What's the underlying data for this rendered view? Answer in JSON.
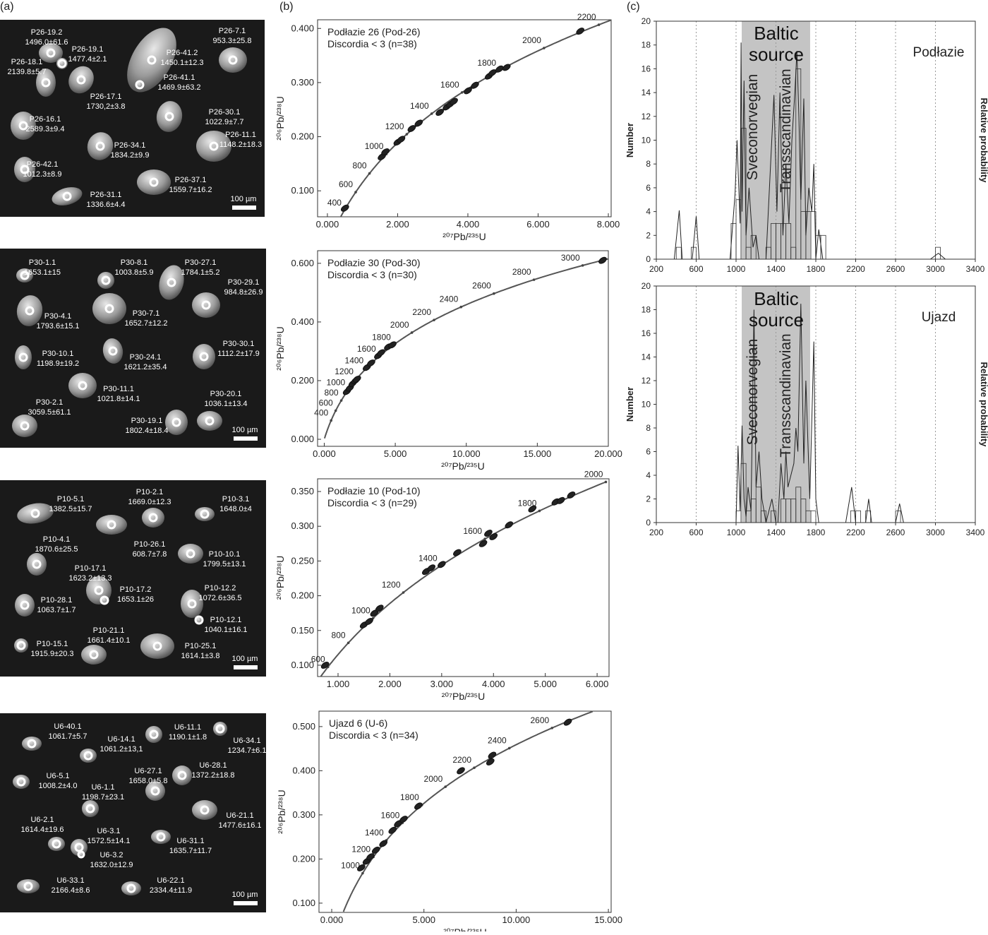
{
  "panel_labels": [
    "(a)",
    "(b)",
    "(c)"
  ],
  "grain_panels": [
    {
      "scale_bar": "100 µm",
      "grains": [
        {
          "id": "P26-19.2",
          "age": "1496.0±61.6"
        },
        {
          "id": "P26-19.1",
          "age": "1477.4±2.1"
        },
        {
          "id": "P26-18.1",
          "age": "2139.8±5.7"
        },
        {
          "id": "P26-17.1",
          "age": "1730,2±3.8"
        },
        {
          "id": "P26-41.2",
          "age": "1450.1±12.3"
        },
        {
          "id": "P26-41.1",
          "age": "1469.9±63.2"
        },
        {
          "id": "P26-7.1",
          "age": "953.3±25.8"
        },
        {
          "id": "P26-16.1",
          "age": "2589.3±9.4"
        },
        {
          "id": "P26-30.1",
          "age": "1022.9±7.7"
        },
        {
          "id": "P26-11.1",
          "age": "1148.2±18.3"
        },
        {
          "id": "P26-34.1",
          "age": "1834.2±9.9"
        },
        {
          "id": "P26-42.1",
          "age": "1012.3±8.9"
        },
        {
          "id": "P26-37.1",
          "age": "1559.7±16.2"
        },
        {
          "id": "P26-31.1",
          "age": "1336.6±4.4"
        }
      ]
    },
    {
      "scale_bar": "100 µm",
      "grains": [
        {
          "id": "P30-1.1",
          "age": "1653.1±15"
        },
        {
          "id": "P30-8.1",
          "age": "1003.8±5.9"
        },
        {
          "id": "P30-27.1",
          "age": "1784.1±5.2"
        },
        {
          "id": "P30-29.1",
          "age": "984.8±26.9"
        },
        {
          "id": "P30-4.1",
          "age": "1793.6±15.1"
        },
        {
          "id": "P30-7.1",
          "age": "1652.7±12.2"
        },
        {
          "id": "P30-10.1",
          "age": "1198.9±19.2"
        },
        {
          "id": "P30-24.1",
          "age": "1621.2±35.4"
        },
        {
          "id": "P30-30.1",
          "age": "1112.2±17.9"
        },
        {
          "id": "P30-11.1",
          "age": "1021.8±14.1"
        },
        {
          "id": "P30-2.1",
          "age": "3059.5±61.1"
        },
        {
          "id": "P30-20.1",
          "age": "1036.1±13.4"
        },
        {
          "id": "P30-19.1",
          "age": "1802.4±18.4"
        }
      ]
    },
    {
      "scale_bar": "100 µm",
      "grains": [
        {
          "id": "P10-5.1",
          "age": "1382.5±15.7"
        },
        {
          "id": "P10-2.1",
          "age": "1669.0±12.3"
        },
        {
          "id": "P10-3.1",
          "age": "1648.0±4"
        },
        {
          "id": "P10-4.1",
          "age": "1870.6±25.5"
        },
        {
          "id": "P10-26.1",
          "age": "608.7±7.8"
        },
        {
          "id": "P10-10.1",
          "age": "1799.5±13.1"
        },
        {
          "id": "P10-17.1",
          "age": "1623.2±13.3"
        },
        {
          "id": "P10-17.2",
          "age": "1653.1±26"
        },
        {
          "id": "P10-12.2",
          "age": "1072.6±36.5"
        },
        {
          "id": "P10-28.1",
          "age": "1063.7±1.7"
        },
        {
          "id": "P10-12.1",
          "age": "1040.1±16.1"
        },
        {
          "id": "P10-15.1",
          "age": "1915.9±20.3"
        },
        {
          "id": "P10-21.1",
          "age": "1661.4±10.1"
        },
        {
          "id": "P10-25.1",
          "age": "1614.1±3.8"
        }
      ]
    },
    {
      "scale_bar": "100 µm",
      "grains": [
        {
          "id": "U6-40.1",
          "age": "1061.7±5.7"
        },
        {
          "id": "U6-14.1",
          "age": "1061.2±13,1"
        },
        {
          "id": "U6-11.1",
          "age": "1190.1±1.8"
        },
        {
          "id": "U6-34.1",
          "age": "1234.7±6.1"
        },
        {
          "id": "U6-5.1",
          "age": "1008.2±4.0"
        },
        {
          "id": "U6-27.1",
          "age": "1658.0±5.8"
        },
        {
          "id": "U6-28.1",
          "age": "1372.2±18.8"
        },
        {
          "id": "U6-1.1",
          "age": "1198.7±23.1"
        },
        {
          "id": "U6-21.1",
          "age": "1477.6±16.1"
        },
        {
          "id": "U6-2.1",
          "age": "1614.4±19.6"
        },
        {
          "id": "U6-3.1",
          "age": "1572.5±14.1"
        },
        {
          "id": "U6-31.1",
          "age": "1635.7±11.7"
        },
        {
          "id": "U6-3.2",
          "age": "1632.0±12.9"
        },
        {
          "id": "U6-33.1",
          "age": "2166.4±8.6"
        },
        {
          "id": "U6-22.1",
          "age": "2334.4±11.9"
        }
      ]
    }
  ],
  "concordia": [
    {
      "title": "Podłazie 26 (Pod-26)",
      "subtitle": "Discordia < 3 (n=38)",
      "x_label": "²⁰⁷Pb/²³⁵U",
      "y_label": "²⁰⁶Pb/²³⁸U",
      "xlim": [
        -0.28,
        8.08
      ],
      "ylim": [
        0.052,
        0.416
      ],
      "xticks": [
        {
          "value": 0,
          "label": "0.000"
        },
        {
          "value": 2,
          "label": "2.000"
        },
        {
          "value": 4,
          "label": "4.000"
        },
        {
          "value": 6,
          "label": "6.000"
        },
        {
          "value": 8,
          "label": "8.000"
        }
      ],
      "yticks": [
        {
          "value": 0.1,
          "label": "0.100"
        },
        {
          "value": 0.2,
          "label": "0.200"
        },
        {
          "value": 0.3,
          "label": "0.300"
        },
        {
          "value": 0.4,
          "label": "0.400"
        }
      ],
      "age_ticks": [
        400,
        600,
        800,
        1000,
        1200,
        1400,
        1600,
        1800,
        2000,
        2200
      ],
      "points": {
        "x": [
          0.5,
          1.55,
          1.65,
          2.0,
          2.1,
          2.4,
          2.6,
          3.2,
          3.4,
          3.5,
          3.6,
          4.0,
          4.2,
          4.6,
          4.7,
          4.9,
          5.1,
          7.2
        ],
        "y": [
          0.068,
          0.163,
          0.172,
          0.19,
          0.195,
          0.215,
          0.225,
          0.245,
          0.255,
          0.26,
          0.265,
          0.285,
          0.295,
          0.312,
          0.318,
          0.325,
          0.328,
          0.395
        ]
      }
    },
    {
      "title": "Podłazie 30 (Pod-30)",
      "subtitle": "Discordia < 3 (n=30)",
      "x_label": "²⁰⁷Pb/²³⁵U",
      "y_label": "²⁰⁶Pb/²³⁸U",
      "xlim": [
        -0.47,
        20.0
      ],
      "ylim": [
        -0.024,
        0.643
      ],
      "xticks": [
        {
          "value": 0,
          "label": "0.000"
        },
        {
          "value": 5,
          "label": "5.000"
        },
        {
          "value": 10,
          "label": "10.000"
        },
        {
          "value": 15,
          "label": "15.000"
        },
        {
          "value": 20,
          "label": "20.000"
        }
      ],
      "yticks": [
        {
          "value": 0,
          "label": "0.000"
        },
        {
          "value": 0.2,
          "label": "0.200"
        },
        {
          "value": 0.4,
          "label": "0.400"
        },
        {
          "value": 0.6,
          "label": "0.600"
        }
      ],
      "age_ticks": [
        400,
        600,
        800,
        1000,
        1200,
        1400,
        1600,
        1800,
        2000,
        2200,
        2400,
        2600,
        2800,
        3000
      ],
      "points": {
        "x": [
          1.6,
          1.8,
          2.0,
          2.2,
          2.3,
          3.0,
          3.3,
          3.8,
          4.0,
          4.5,
          4.8,
          19.6
        ],
        "y": [
          0.163,
          0.175,
          0.19,
          0.2,
          0.205,
          0.245,
          0.26,
          0.285,
          0.295,
          0.315,
          0.322,
          0.61
        ]
      }
    },
    {
      "title": "Podłazie 10 (Pod-10)",
      "subtitle": "Discordia < 3 (n=29)",
      "x_label": "²⁰⁷Pb/²³⁵U",
      "y_label": "²⁰⁶Pb/²³⁸U",
      "xlim": [
        0.605,
        6.23
      ],
      "ylim": [
        0.0837,
        0.3683
      ],
      "xticks": [
        {
          "value": 1,
          "label": "1.000"
        },
        {
          "value": 2,
          "label": "2.000"
        },
        {
          "value": 3,
          "label": "3.000"
        },
        {
          "value": 4,
          "label": "4.000"
        },
        {
          "value": 5,
          "label": "5.000"
        },
        {
          "value": 6,
          "label": "6.000"
        }
      ],
      "yticks": [
        {
          "value": 0.1,
          "label": "0.100"
        },
        {
          "value": 0.15,
          "label": "0.150"
        },
        {
          "value": 0.2,
          "label": "0.200"
        },
        {
          "value": 0.25,
          "label": "0.250"
        },
        {
          "value": 0.3,
          "label": "0.300"
        },
        {
          "value": 0.35,
          "label": "0.350"
        }
      ],
      "age_ticks": [
        600,
        800,
        1000,
        1200,
        1400,
        1600,
        1800,
        2000
      ],
      "points": {
        "x": [
          0.75,
          1.5,
          1.6,
          1.7,
          1.8,
          2.7,
          2.8,
          3.0,
          3.3,
          3.8,
          3.9,
          4.0,
          4.3,
          4.75,
          5.2,
          5.3,
          5.5
        ],
        "y": [
          0.1,
          0.158,
          0.163,
          0.175,
          0.182,
          0.235,
          0.24,
          0.245,
          0.262,
          0.275,
          0.29,
          0.285,
          0.302,
          0.325,
          0.335,
          0.337,
          0.345
        ]
      }
    },
    {
      "title": "Ujazd 6 (U-6)",
      "subtitle": "Discordia < 3 (n=34)",
      "x_label": "²⁰⁷Pb/²³⁵U",
      "y_label": "²⁰⁶Pb/²³⁸U",
      "xlim": [
        -0.69,
        15.15
      ],
      "ylim": [
        0.079,
        0.535
      ],
      "xticks": [
        {
          "value": 0,
          "label": "0.000"
        },
        {
          "value": 5,
          "label": "5.000"
        },
        {
          "value": 10,
          "label": "10.000"
        },
        {
          "value": 15,
          "label": "15.000"
        }
      ],
      "yticks": [
        {
          "value": 0.1,
          "label": "0.100"
        },
        {
          "value": 0.2,
          "label": "0.200"
        },
        {
          "value": 0.3,
          "label": "0.300"
        },
        {
          "value": 0.4,
          "label": "0.400"
        },
        {
          "value": 0.5,
          "label": "0.500"
        }
      ],
      "age_ticks": [
        1000,
        1200,
        1400,
        1600,
        1800,
        2000,
        2200,
        2400,
        2600
      ],
      "points": {
        "x": [
          1.6,
          1.9,
          2.1,
          2.4,
          2.8,
          3.3,
          3.6,
          3.9,
          4.7,
          7.0,
          8.6,
          8.7,
          12.8
        ],
        "y": [
          0.18,
          0.195,
          0.205,
          0.22,
          0.235,
          0.265,
          0.28,
          0.29,
          0.32,
          0.4,
          0.42,
          0.435,
          0.51
        ]
      }
    }
  ],
  "histograms": [
    {
      "site": "Podłazie",
      "source_label": "Baltic source",
      "band_labels": [
        "Sveconorvegian",
        "Transscandinavian"
      ],
      "band": [
        1057,
        1743
      ],
      "y_label": "Number",
      "y2_label": "Relative probability",
      "xlim": [
        200,
        3400
      ],
      "ylim": [
        0,
        20
      ],
      "xticks": [
        200,
        600,
        1000,
        1400,
        1800,
        2200,
        2600,
        3000,
        3400
      ],
      "yticks": [
        0,
        2,
        4,
        6,
        8,
        10,
        12,
        14,
        16,
        18,
        20
      ],
      "xgrid": [
        600,
        1000,
        1400,
        1800,
        2200,
        2600,
        3000
      ],
      "bins": [
        400,
        450,
        500,
        550,
        600,
        650,
        700,
        750,
        800,
        850,
        900,
        950,
        1000,
        1050,
        1100,
        1150,
        1200,
        1250,
        1300,
        1350,
        1400,
        1450,
        1500,
        1550,
        1600,
        1650,
        1700,
        1750,
        1800,
        1850,
        1900,
        1950,
        2000,
        2050,
        2100,
        2150,
        2200,
        2250,
        2300,
        2350,
        2400,
        2450,
        2500,
        2550,
        2600,
        2650,
        2700,
        2750,
        2800,
        2850,
        2900,
        2950,
        3000,
        3050,
        3100
      ],
      "counts": [
        1,
        0,
        0,
        1,
        0,
        0,
        0,
        0,
        0,
        0,
        0,
        3,
        5,
        11,
        1,
        2,
        0,
        0,
        1,
        3,
        3,
        3,
        3,
        1,
        16,
        4,
        4,
        4,
        2,
        2,
        0,
        0,
        0,
        0,
        0,
        0,
        0,
        0,
        0,
        0,
        0,
        0,
        0,
        0,
        0,
        0,
        0,
        0,
        0,
        0,
        0,
        0,
        1,
        0
      ],
      "probability": {
        "x": [
          380,
          430,
          460,
          560,
          600,
          630,
          940,
          990,
          1010,
          1040,
          1050,
          1060,
          1080,
          1100,
          1130,
          1170,
          1200,
          1230,
          1300,
          1380,
          1410,
          1440,
          1470,
          1500,
          1530,
          1560,
          1590,
          1610,
          1630,
          1650,
          1680,
          1700,
          1730,
          1760,
          1780,
          1800,
          1830,
          1870,
          2950,
          3030,
          3100
        ],
        "values": [
          0,
          4.1,
          0,
          0,
          3.6,
          0,
          0,
          5.5,
          10,
          3,
          18.2,
          4,
          15,
          2,
          6,
          1,
          2,
          0,
          0,
          13.8,
          4,
          14,
          2,
          8,
          3,
          10,
          14,
          17.5,
          12,
          5,
          13.5,
          2,
          6,
          4,
          8,
          0,
          2.5,
          0,
          0,
          0.5,
          0
        ]
      }
    },
    {
      "site": "Ujazd",
      "source_label": "Baltic source",
      "band_labels": [
        "Sveconorvegian",
        "Transscandinavian"
      ],
      "band": [
        1057,
        1743
      ],
      "y_label": "Number",
      "y2_label": "Relative probability",
      "xlim": [
        200,
        3400
      ],
      "ylim": [
        0,
        20
      ],
      "xticks": [
        200,
        600,
        1000,
        1400,
        1800,
        2200,
        2600,
        3000,
        3400
      ],
      "yticks": [
        0,
        2,
        4,
        6,
        8,
        10,
        12,
        14,
        16,
        18,
        20
      ],
      "xgrid": [
        600,
        1000,
        1400,
        1800,
        2200,
        2600,
        3000
      ],
      "bins": [
        400,
        450,
        500,
        550,
        600,
        650,
        700,
        750,
        800,
        850,
        900,
        950,
        1000,
        1050,
        1100,
        1150,
        1200,
        1250,
        1300,
        1350,
        1400,
        1450,
        1500,
        1550,
        1600,
        1650,
        1700,
        1750,
        1800,
        1850,
        1900,
        1950,
        2000,
        2050,
        2100,
        2150,
        2200,
        2250,
        2300,
        2350,
        2400,
        2450,
        2500,
        2550,
        2600,
        2650,
        2700,
        2750,
        2800,
        2850,
        2900,
        2950,
        3000,
        3050,
        3100
      ],
      "counts": [
        0,
        0,
        0,
        0,
        0,
        0,
        0,
        0,
        0,
        0,
        0,
        0,
        1,
        5,
        1,
        2,
        3,
        1,
        0,
        1,
        0,
        2,
        2,
        2,
        3,
        2,
        1,
        1,
        0,
        0,
        0,
        0,
        0,
        0,
        0,
        1,
        1,
        0,
        1,
        0,
        0,
        0,
        0,
        0,
        1,
        0,
        0,
        0,
        0,
        0,
        0,
        0,
        0,
        0
      ],
      "probability": {
        "x": [
          1000,
          1020,
          1040,
          1060,
          1080,
          1100,
          1120,
          1150,
          1180,
          1200,
          1230,
          1260,
          1300,
          1360,
          1400,
          1420,
          1450,
          1480,
          1500,
          1520,
          1550,
          1580,
          1600,
          1620,
          1650,
          1680,
          1700,
          1740,
          1780,
          1800,
          1830,
          2100,
          2160,
          2200,
          2300,
          2330,
          2360,
          2600,
          2640,
          2680
        ],
        "values": [
          0,
          6.5,
          1,
          8.2,
          2,
          0.5,
          3,
          1,
          18,
          3,
          6,
          2,
          0,
          2,
          0,
          0,
          5,
          2,
          6,
          3,
          4,
          5,
          8,
          6,
          18.5,
          5,
          12,
          2,
          15.3,
          2,
          0,
          0,
          3,
          0,
          0,
          2,
          0,
          0,
          1.6,
          0
        ]
      }
    }
  ]
}
